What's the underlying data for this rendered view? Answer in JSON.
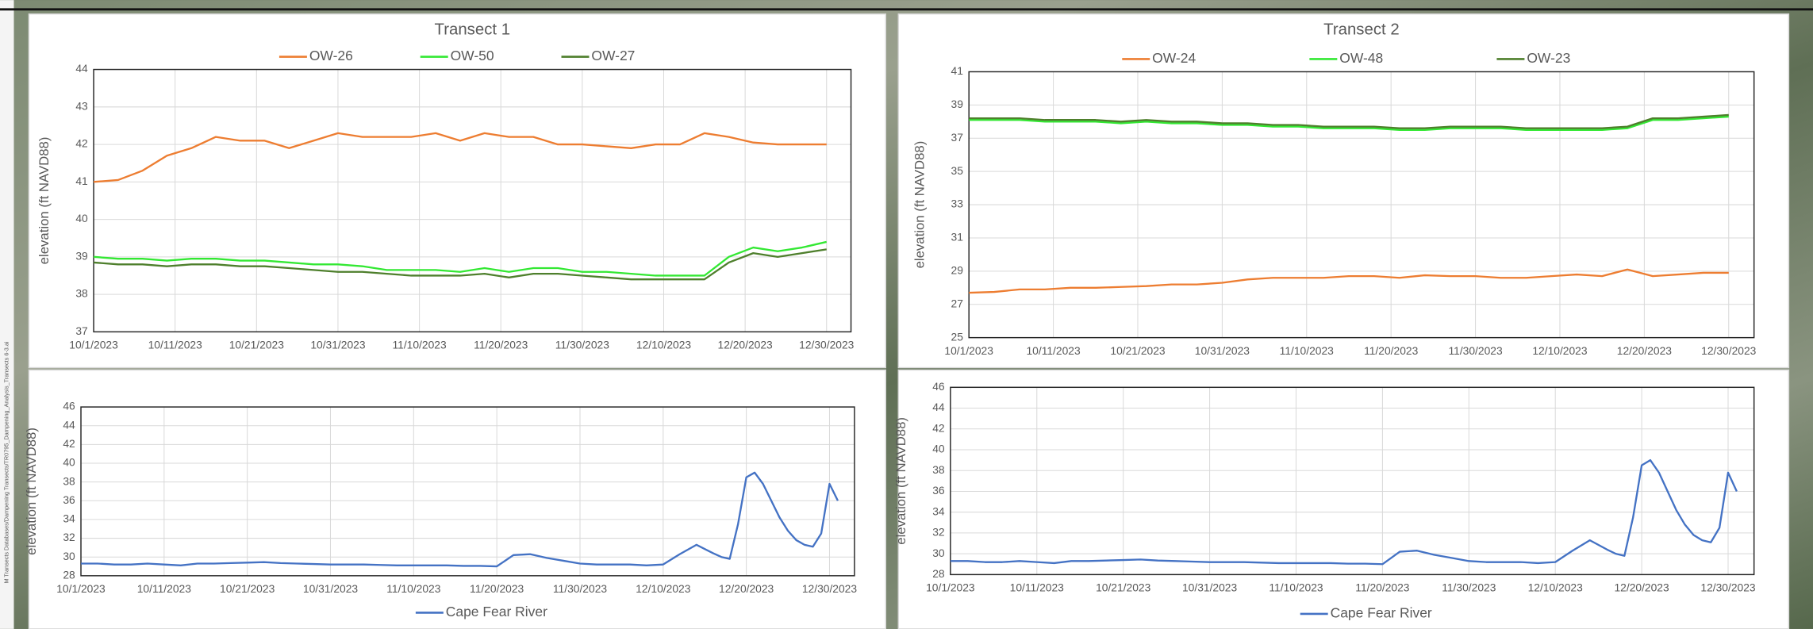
{
  "file_path": "M Transects Databases/Dampening Transects/TR0795_Dampening_Analysis_Transects 6-3.ai",
  "chart_data": [
    {
      "type": "line",
      "title": "Transect 1",
      "y_label": "elevation (ft NAVD88)",
      "legend": "top",
      "grid": true,
      "x": [
        "10/1/2023",
        "10/4/2023",
        "10/7/2023",
        "10/10/2023",
        "10/13/2023",
        "10/16/2023",
        "10/19/2023",
        "10/22/2023",
        "10/25/2023",
        "10/28/2023",
        "10/31/2023",
        "11/3/2023",
        "11/6/2023",
        "11/9/2023",
        "11/12/2023",
        "11/15/2023",
        "11/18/2023",
        "11/21/2023",
        "11/24/2023",
        "11/27/2023",
        "11/30/2023",
        "12/3/2023",
        "12/6/2023",
        "12/9/2023",
        "12/12/2023",
        "12/15/2023",
        "12/18/2023",
        "12/21/2023",
        "12/24/2023",
        "12/27/2023",
        "12/30/2023"
      ],
      "xlim": [
        "10/1/2023",
        "1/2/2024"
      ],
      "xticks": [
        "10/1/2023",
        "10/11/2023",
        "10/21/2023",
        "10/31/2023",
        "11/10/2023",
        "11/20/2023",
        "11/30/2023",
        "12/10/2023",
        "12/20/2023",
        "12/30/2023"
      ],
      "ylim": [
        37,
        44
      ],
      "yticks": [
        37,
        38,
        39,
        40,
        41,
        42,
        43,
        44
      ],
      "series": [
        {
          "name": "OW-26",
          "color": "#ed7d31",
          "values": [
            41.0,
            41.05,
            41.3,
            41.7,
            41.9,
            42.2,
            42.1,
            42.1,
            41.9,
            42.1,
            42.3,
            42.2,
            42.2,
            42.2,
            42.3,
            42.1,
            42.3,
            42.2,
            42.2,
            42.0,
            42.0,
            41.95,
            41.9,
            42.0,
            42.0,
            42.3,
            42.2,
            42.05,
            42.0,
            42.0,
            42.0
          ]
        },
        {
          "name": "OW-50",
          "color": "#33e833",
          "values": [
            39.0,
            38.95,
            38.95,
            38.9,
            38.95,
            38.95,
            38.9,
            38.9,
            38.85,
            38.8,
            38.8,
            38.75,
            38.65,
            38.65,
            38.65,
            38.6,
            38.7,
            38.6,
            38.7,
            38.7,
            38.6,
            38.6,
            38.55,
            38.5,
            38.5,
            38.5,
            39.0,
            39.25,
            39.15,
            39.25,
            39.4
          ]
        },
        {
          "name": "OW-27",
          "color": "#4e7f2c",
          "values": [
            38.85,
            38.8,
            38.8,
            38.75,
            38.8,
            38.8,
            38.75,
            38.75,
            38.7,
            38.65,
            38.6,
            38.6,
            38.55,
            38.5,
            38.5,
            38.5,
            38.55,
            38.45,
            38.55,
            38.55,
            38.5,
            38.45,
            38.4,
            38.4,
            38.4,
            38.4,
            38.85,
            39.1,
            39.0,
            39.1,
            39.2
          ]
        }
      ]
    },
    {
      "type": "line",
      "title": "Transect 2",
      "y_label": "elevation (ft NAVD88)",
      "legend": "top",
      "grid": true,
      "x": [
        "10/1/2023",
        "10/4/2023",
        "10/7/2023",
        "10/10/2023",
        "10/13/2023",
        "10/16/2023",
        "10/19/2023",
        "10/22/2023",
        "10/25/2023",
        "10/28/2023",
        "10/31/2023",
        "11/3/2023",
        "11/6/2023",
        "11/9/2023",
        "11/12/2023",
        "11/15/2023",
        "11/18/2023",
        "11/21/2023",
        "11/24/2023",
        "11/27/2023",
        "11/30/2023",
        "12/3/2023",
        "12/6/2023",
        "12/9/2023",
        "12/12/2023",
        "12/15/2023",
        "12/18/2023",
        "12/21/2023",
        "12/24/2023",
        "12/27/2023",
        "12/30/2023"
      ],
      "xlim": [
        "10/1/2023",
        "1/2/2024"
      ],
      "xticks": [
        "10/1/2023",
        "10/11/2023",
        "10/21/2023",
        "10/31/2023",
        "11/10/2023",
        "11/20/2023",
        "11/30/2023",
        "12/10/2023",
        "12/20/2023",
        "12/30/2023"
      ],
      "ylim": [
        25,
        41
      ],
      "yticks": [
        25,
        27,
        29,
        31,
        33,
        35,
        37,
        39,
        41
      ],
      "series": [
        {
          "name": "OW-24",
          "color": "#ed7d31",
          "values": [
            27.7,
            27.75,
            27.9,
            27.9,
            28.0,
            28.0,
            28.05,
            28.1,
            28.2,
            28.2,
            28.3,
            28.5,
            28.6,
            28.6,
            28.6,
            28.7,
            28.7,
            28.6,
            28.75,
            28.7,
            28.7,
            28.6,
            28.6,
            28.7,
            28.8,
            28.7,
            29.1,
            28.7,
            28.8,
            28.9,
            28.9
          ]
        },
        {
          "name": "OW-48",
          "color": "#33e833",
          "values": [
            38.1,
            38.1,
            38.1,
            38.0,
            38.0,
            38.0,
            37.9,
            38.0,
            37.9,
            37.9,
            37.8,
            37.8,
            37.7,
            37.7,
            37.6,
            37.6,
            37.6,
            37.5,
            37.5,
            37.6,
            37.6,
            37.6,
            37.5,
            37.5,
            37.5,
            37.5,
            37.6,
            38.1,
            38.1,
            38.2,
            38.3
          ]
        },
        {
          "name": "OW-23",
          "color": "#4e7f2c",
          "values": [
            38.2,
            38.2,
            38.2,
            38.1,
            38.1,
            38.1,
            38.0,
            38.1,
            38.0,
            38.0,
            37.9,
            37.9,
            37.8,
            37.8,
            37.7,
            37.7,
            37.7,
            37.6,
            37.6,
            37.7,
            37.7,
            37.7,
            37.6,
            37.6,
            37.6,
            37.6,
            37.7,
            38.2,
            38.2,
            38.3,
            38.4
          ]
        }
      ]
    },
    {
      "type": "line",
      "y_label": "elevation (ft NAVD88)",
      "legend": "bottom",
      "grid": true,
      "x": [
        "10/1/2023",
        "10/3/2023",
        "10/5/2023",
        "10/7/2023",
        "10/9/2023",
        "10/11/2023",
        "10/13/2023",
        "10/15/2023",
        "10/17/2023",
        "10/19/2023",
        "10/21/2023",
        "10/23/2023",
        "10/25/2023",
        "10/27/2023",
        "10/29/2023",
        "10/31/2023",
        "11/2/2023",
        "11/4/2023",
        "11/6/2023",
        "11/8/2023",
        "11/10/2023",
        "11/12/2023",
        "11/14/2023",
        "11/16/2023",
        "11/18/2023",
        "11/20/2023",
        "11/22/2023",
        "11/24/2023",
        "11/26/2023",
        "11/28/2023",
        "11/30/2023",
        "12/2/2023",
        "12/4/2023",
        "12/6/2023",
        "12/8/2023",
        "12/10/2023",
        "12/12/2023",
        "12/14/2023",
        "12/16/2023",
        "12/17/2023",
        "12/18/2023",
        "12/19/2023",
        "12/20/2023",
        "12/21/2023",
        "12/22/2023",
        "12/23/2023",
        "12/24/2023",
        "12/25/2023",
        "12/26/2023",
        "12/27/2023",
        "12/28/2023",
        "12/29/2023",
        "12/30/2023",
        "12/31/2023"
      ],
      "xlim": [
        "10/1/2023",
        "1/2/2024"
      ],
      "xticks": [
        "10/1/2023",
        "10/11/2023",
        "10/21/2023",
        "10/31/2023",
        "11/10/2023",
        "11/20/2023",
        "11/30/2023",
        "12/10/2023",
        "12/20/2023",
        "12/30/2023"
      ],
      "ylim": [
        28,
        46
      ],
      "yticks": [
        28,
        30,
        32,
        34,
        36,
        38,
        40,
        42,
        44,
        46
      ],
      "series": [
        {
          "name": "Cape Fear River",
          "color": "#4472c4",
          "values": [
            29.3,
            29.3,
            29.2,
            29.2,
            29.3,
            29.2,
            29.1,
            29.3,
            29.3,
            29.35,
            29.4,
            29.45,
            29.35,
            29.3,
            29.25,
            29.2,
            29.2,
            29.2,
            29.15,
            29.1,
            29.1,
            29.1,
            29.1,
            29.05,
            29.05,
            29.0,
            30.2,
            30.3,
            29.9,
            29.6,
            29.3,
            29.2,
            29.2,
            29.2,
            29.1,
            29.2,
            30.3,
            31.3,
            30.4,
            30.0,
            29.8,
            33.5,
            38.5,
            39.0,
            37.8,
            36.0,
            34.2,
            32.8,
            31.8,
            31.3,
            31.1,
            32.5,
            37.8,
            36.0
          ]
        }
      ]
    },
    {
      "type": "line",
      "y_label": "elevation (ft NAVD88)",
      "legend": "bottom",
      "grid": true,
      "x": [
        "10/1/2023",
        "10/3/2023",
        "10/5/2023",
        "10/7/2023",
        "10/9/2023",
        "10/11/2023",
        "10/13/2023",
        "10/15/2023",
        "10/17/2023",
        "10/19/2023",
        "10/21/2023",
        "10/23/2023",
        "10/25/2023",
        "10/27/2023",
        "10/29/2023",
        "10/31/2023",
        "11/2/2023",
        "11/4/2023",
        "11/6/2023",
        "11/8/2023",
        "11/10/2023",
        "11/12/2023",
        "11/14/2023",
        "11/16/2023",
        "11/18/2023",
        "11/20/2023",
        "11/22/2023",
        "11/24/2023",
        "11/26/2023",
        "11/28/2023",
        "11/30/2023",
        "12/2/2023",
        "12/4/2023",
        "12/6/2023",
        "12/8/2023",
        "12/10/2023",
        "12/12/2023",
        "12/14/2023",
        "12/16/2023",
        "12/17/2023",
        "12/18/2023",
        "12/19/2023",
        "12/20/2023",
        "12/21/2023",
        "12/22/2023",
        "12/23/2023",
        "12/24/2023",
        "12/25/2023",
        "12/26/2023",
        "12/27/2023",
        "12/28/2023",
        "12/29/2023",
        "12/30/2023",
        "12/31/2023"
      ],
      "xlim": [
        "10/1/2023",
        "1/2/2024"
      ],
      "xticks": [
        "10/1/2023",
        "10/11/2023",
        "10/21/2023",
        "10/31/2023",
        "11/10/2023",
        "11/20/2023",
        "11/30/2023",
        "12/10/2023",
        "12/20/2023",
        "12/30/2023"
      ],
      "ylim": [
        28,
        46
      ],
      "yticks": [
        28,
        30,
        32,
        34,
        36,
        38,
        40,
        42,
        44,
        46
      ],
      "series": [
        {
          "name": "Cape Fear River",
          "color": "#4472c4",
          "values": [
            29.3,
            29.3,
            29.2,
            29.2,
            29.3,
            29.2,
            29.1,
            29.3,
            29.3,
            29.35,
            29.4,
            29.45,
            29.35,
            29.3,
            29.25,
            29.2,
            29.2,
            29.2,
            29.15,
            29.1,
            29.1,
            29.1,
            29.1,
            29.05,
            29.05,
            29.0,
            30.2,
            30.3,
            29.9,
            29.6,
            29.3,
            29.2,
            29.2,
            29.2,
            29.1,
            29.2,
            30.3,
            31.3,
            30.4,
            30.0,
            29.8,
            33.5,
            38.5,
            39.0,
            37.8,
            36.0,
            34.2,
            32.8,
            31.8,
            31.3,
            31.1,
            32.5,
            37.8,
            36.0
          ]
        }
      ]
    }
  ]
}
